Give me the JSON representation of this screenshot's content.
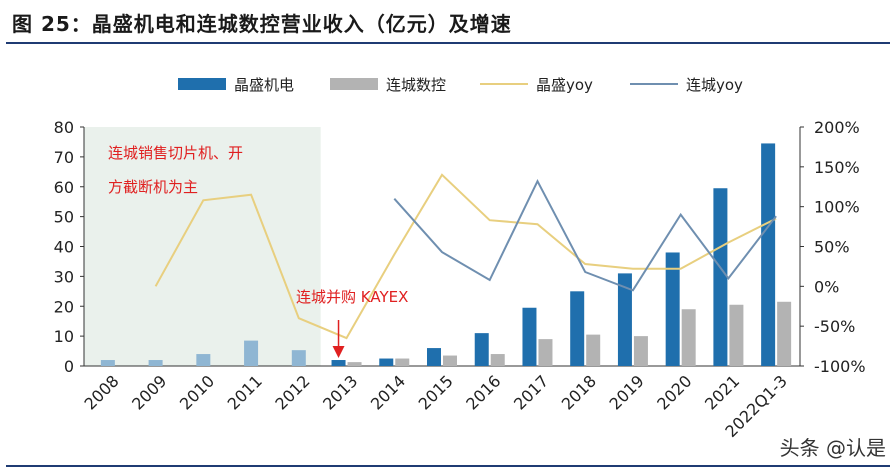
{
  "header": {
    "title": "图 25：晶盛机电和连城数控营业收入（亿元）及增速"
  },
  "watermark": "头条 @认是",
  "annotations": {
    "shaded_text_line1": "连城销售切片机、开",
    "shaded_text_line2": "方截断机为主",
    "acquisition_text": "连城并购 KAYEX"
  },
  "colors": {
    "jingsheng_bar": "#1f6fad",
    "liancheng_bar": "#b3b3b3",
    "jingsheng_yoy": "#e8cf7f",
    "liancheng_yoy": "#6f8fb0",
    "shade": "#eaf1ec",
    "early_bar": "#8fb6d3",
    "annotation": "#e02020"
  },
  "chart_data": {
    "type": "bar",
    "categories": [
      "2008",
      "2009",
      "2010",
      "2011",
      "2012",
      "2013",
      "2014",
      "2015",
      "2016",
      "2017",
      "2018",
      "2019",
      "2020",
      "2021",
      "2022Q1-3"
    ],
    "y_left": {
      "min": 0,
      "max": 80,
      "ticks": [
        "0",
        "10",
        "20",
        "30",
        "40",
        "50",
        "60",
        "70",
        "80"
      ]
    },
    "y_right": {
      "min": -100,
      "max": 200,
      "ticks": [
        "-100%",
        "-50%",
        "0%",
        "50%",
        "100%",
        "150%",
        "200%"
      ]
    },
    "legend": [
      "晶盛机电",
      "连城数控",
      "晶盛yoy",
      "连城yoy"
    ],
    "legend_position": "top",
    "series": [
      {
        "name": "晶盛机电",
        "kind": "bar",
        "axis": "left",
        "values": [
          2.0,
          2.0,
          4.0,
          8.5,
          5.3,
          2.0,
          2.5,
          6.0,
          11.0,
          19.5,
          25.0,
          31.0,
          38.0,
          59.5,
          74.5
        ]
      },
      {
        "name": "连城数控",
        "kind": "bar",
        "axis": "left",
        "values": [
          null,
          null,
          null,
          null,
          null,
          1.3,
          2.5,
          3.5,
          4.0,
          9.0,
          10.5,
          10.0,
          19.0,
          20.5,
          21.5
        ]
      },
      {
        "name": "晶盛yoy",
        "kind": "line",
        "axis": "right",
        "values": [
          null,
          0,
          108,
          115,
          -40,
          -65,
          40,
          140,
          83,
          78,
          28,
          22,
          22,
          55,
          85
        ]
      },
      {
        "name": "连城yoy",
        "kind": "line",
        "axis": "right",
        "values": [
          null,
          null,
          null,
          null,
          null,
          null,
          110,
          43,
          8,
          132,
          18,
          -5,
          90,
          10,
          88
        ]
      }
    ]
  }
}
